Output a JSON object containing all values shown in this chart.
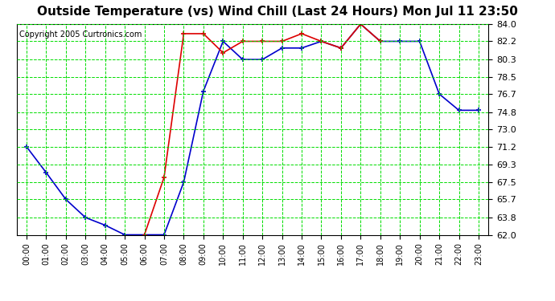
{
  "title": "Outside Temperature (vs) Wind Chill (Last 24 Hours) Mon Jul 11 23:50",
  "copyright": "Copyright 2005 Curtronics.com",
  "background_color": "#ffffff",
  "plot_bg_color": "#ffffff",
  "grid_color": "#00dd00",
  "hours": [
    0,
    1,
    2,
    3,
    4,
    5,
    6,
    7,
    8,
    9,
    10,
    11,
    12,
    13,
    14,
    15,
    16,
    17,
    18,
    19,
    20,
    21,
    22,
    23
  ],
  "temp": [
    71.2,
    68.5,
    65.7,
    63.8,
    63.0,
    62.0,
    62.0,
    62.0,
    67.5,
    77.0,
    82.2,
    80.3,
    80.3,
    81.5,
    81.5,
    82.2,
    81.5,
    84.0,
    82.2,
    82.2,
    82.2,
    76.7,
    75.0,
    75.0
  ],
  "windchill": [
    null,
    null,
    null,
    null,
    null,
    null,
    62.0,
    68.0,
    83.0,
    83.0,
    81.0,
    82.2,
    82.2,
    82.2,
    83.0,
    82.2,
    81.5,
    84.0,
    82.2,
    null,
    null,
    null,
    null,
    null
  ],
  "ylim": [
    62.0,
    84.0
  ],
  "yticks": [
    62.0,
    63.8,
    65.7,
    67.5,
    69.3,
    71.2,
    73.0,
    74.8,
    76.7,
    78.5,
    80.3,
    82.2,
    84.0
  ],
  "temp_color": "#0000cc",
  "windchill_color": "#dd0000",
  "marker": "+",
  "linewidth": 1.2,
  "title_color": "#000000",
  "axis_color": "#000000",
  "tick_color": "#000000",
  "copyright_color": "#000000"
}
